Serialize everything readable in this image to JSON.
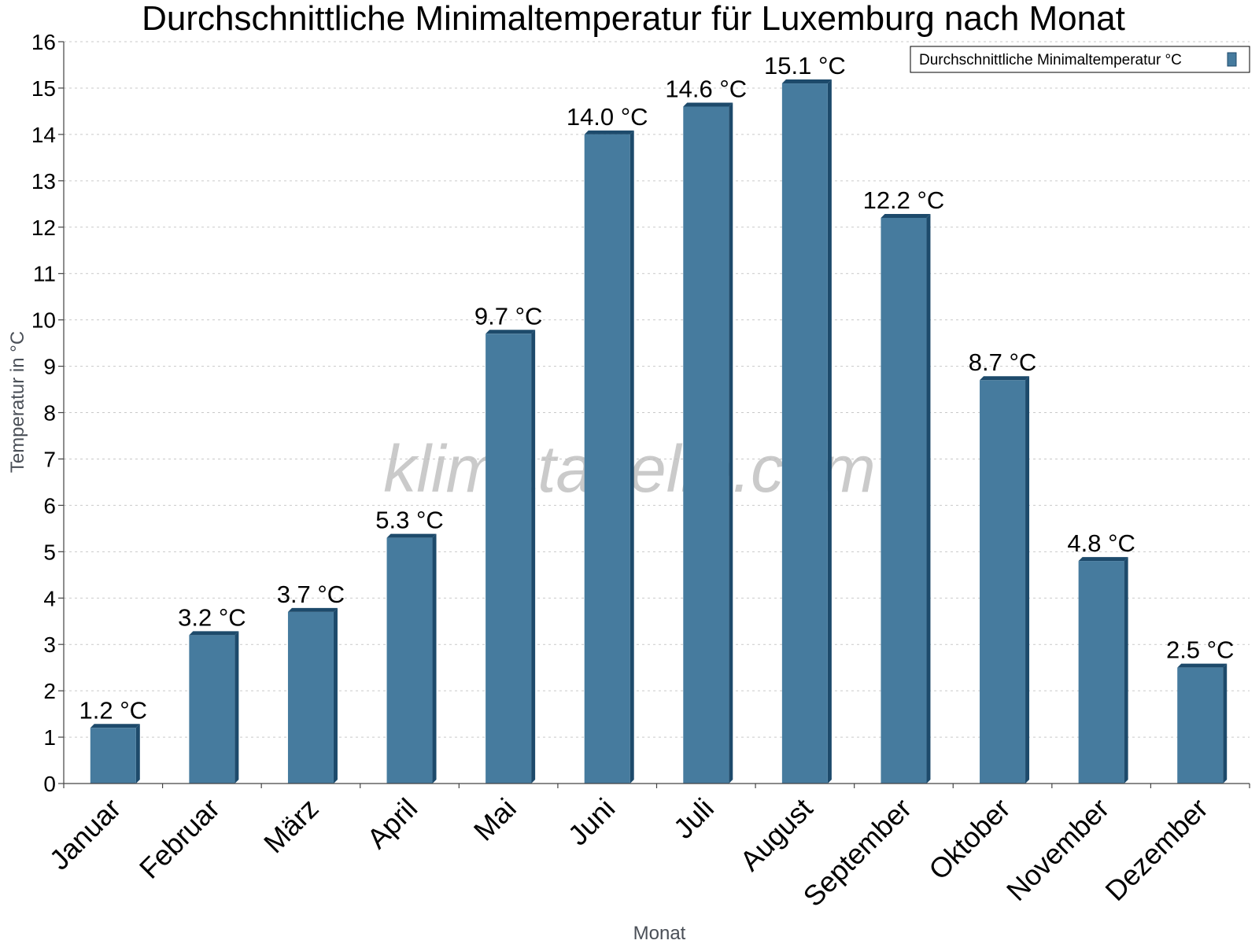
{
  "chart_data": {
    "type": "bar",
    "title": "Durchschnittliche Minimaltemperatur für Luxemburg nach Monat",
    "xlabel": "Monat",
    "ylabel": "Temperatur in °C",
    "categories": [
      "Januar",
      "Februar",
      "März",
      "April",
      "Mai",
      "Juni",
      "Juli",
      "August",
      "September",
      "Oktober",
      "November",
      "Dezember"
    ],
    "series": [
      {
        "name": "Durchschnittliche Minimaltemperatur °C",
        "values": [
          1.2,
          3.2,
          3.7,
          5.3,
          9.7,
          14.0,
          14.6,
          15.1,
          12.2,
          8.7,
          4.8,
          2.5
        ],
        "labels": [
          "1.2 °C",
          "3.2 °C",
          "3.7 °C",
          "5.3 °C",
          "9.7 °C",
          "14.0 °C",
          "14.6 °C",
          "15.1 °C",
          "12.2 °C",
          "8.7 °C",
          "4.8 °C",
          "2.5 °C"
        ]
      }
    ],
    "ylim": [
      0,
      16
    ],
    "yticks": [
      0,
      1,
      2,
      3,
      4,
      5,
      6,
      7,
      8,
      9,
      10,
      11,
      12,
      13,
      14,
      15,
      16
    ],
    "grid": true,
    "legend_position": "top-right",
    "colors": {
      "bar": "#467b9e",
      "bar_edge": "#1d4a6b"
    }
  },
  "watermark": "klimatabelle.com"
}
